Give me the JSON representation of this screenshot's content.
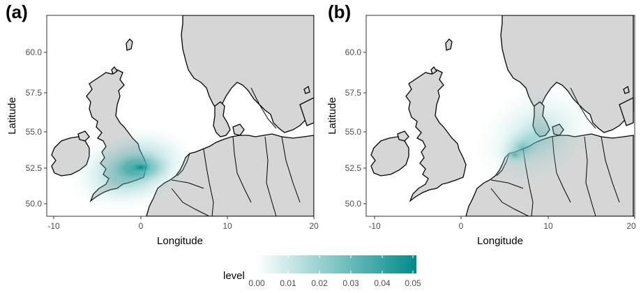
{
  "panels": [
    {
      "id": "a",
      "letter": "(a)",
      "xlabel": "Longitude",
      "ylabel": "Latitude",
      "x_ticks": [
        "-10",
        "0",
        "10",
        "20"
      ],
      "y_ticks": [
        "50.0",
        "52.5",
        "55.0",
        "57.5",
        "60.0"
      ],
      "density_peak": {
        "lon": 0.2,
        "lat": 52.5,
        "level": 0.05
      }
    },
    {
      "id": "b",
      "letter": "(b)",
      "xlabel": "Longitude",
      "ylabel": "Latitude",
      "x_ticks": [
        "-10",
        "0",
        "10",
        "20"
      ],
      "y_ticks": [
        "50.0",
        "52.5",
        "55.0",
        "57.5",
        "60.0"
      ],
      "density_peak": {
        "lon": 6.5,
        "lat": 54.0,
        "level": 0.035
      }
    }
  ],
  "legend": {
    "title": "level",
    "ticks": [
      "0.00",
      "0.01",
      "0.02",
      "0.03",
      "0.04",
      "0.05"
    ],
    "color_low": "#ffffff",
    "color_high": "#008b8b"
  },
  "colors": {
    "land": "#d6d6d6",
    "coast": "#000000",
    "sea": "#ffffff",
    "density": "#008b8b"
  }
}
